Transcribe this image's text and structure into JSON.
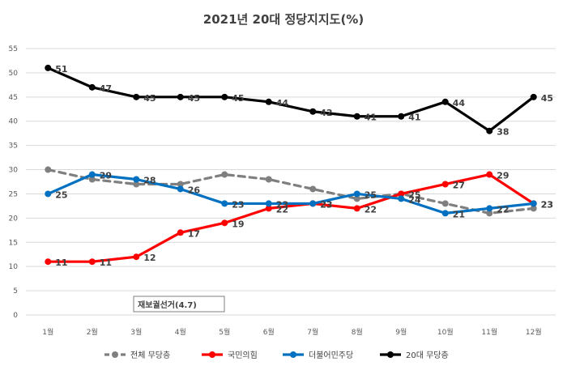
{
  "chart_data": {
    "type": "line",
    "title": "2021년 20대 정당지지도(%)",
    "categories": [
      "1월",
      "2월",
      "3월",
      "4월",
      "5월",
      "6월",
      "7월",
      "8월",
      "9월",
      "10월",
      "11월",
      "12월"
    ],
    "ylim": [
      0,
      55
    ],
    "yticks": [
      0,
      5,
      10,
      15,
      20,
      25,
      30,
      35,
      40,
      45,
      50,
      55
    ],
    "grid": true,
    "legend_position": "bottom",
    "annotation": "재보궐선거(4.7)",
    "series": [
      {
        "name": "전체 무당층",
        "color": "#7f7f7f",
        "dashed": true,
        "show_labels": false,
        "values": [
          30,
          28,
          27,
          27,
          29,
          28,
          26,
          24,
          25,
          23,
          21,
          22
        ]
      },
      {
        "name": "국민의힘",
        "color": "#ff0000",
        "dashed": false,
        "show_labels": true,
        "values": [
          11,
          11,
          12,
          17,
          19,
          22,
          23,
          22,
          25,
          27,
          29,
          23
        ]
      },
      {
        "name": "더불어민주당",
        "color": "#0070c0",
        "dashed": false,
        "show_labels": true,
        "values": [
          25,
          29,
          28,
          26,
          23,
          23,
          23,
          25,
          24,
          21,
          22,
          23
        ]
      },
      {
        "name": "20대 무당층",
        "color": "#000000",
        "dashed": false,
        "show_labels": true,
        "values": [
          51,
          47,
          45,
          45,
          45,
          44,
          42,
          41,
          41,
          44,
          38,
          45
        ]
      }
    ]
  }
}
